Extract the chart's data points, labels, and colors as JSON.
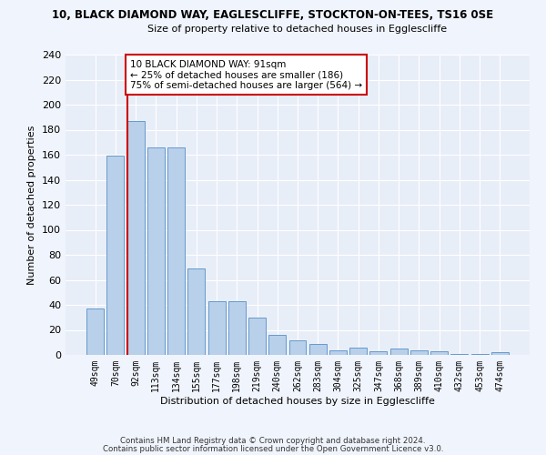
{
  "title1": "10, BLACK DIAMOND WAY, EAGLESCLIFFE, STOCKTON-ON-TEES, TS16 0SE",
  "title2": "Size of property relative to detached houses in Egglescliffe",
  "xlabel": "Distribution of detached houses by size in Egglescliffe",
  "ylabel": "Number of detached properties",
  "bar_color": "#b8d0ea",
  "bar_edge_color": "#6699cc",
  "bg_color": "#e8eef8",
  "grid_color": "#ffffff",
  "categories": [
    "49sqm",
    "70sqm",
    "92sqm",
    "113sqm",
    "134sqm",
    "155sqm",
    "177sqm",
    "198sqm",
    "219sqm",
    "240sqm",
    "262sqm",
    "283sqm",
    "304sqm",
    "325sqm",
    "347sqm",
    "368sqm",
    "389sqm",
    "410sqm",
    "432sqm",
    "453sqm",
    "474sqm"
  ],
  "values": [
    37,
    159,
    187,
    166,
    166,
    69,
    43,
    43,
    30,
    16,
    12,
    9,
    4,
    6,
    3,
    5,
    4,
    3,
    1,
    1,
    2
  ],
  "red_line_index": 2,
  "annotation_text": "10 BLACK DIAMOND WAY: 91sqm\n← 25% of detached houses are smaller (186)\n75% of semi-detached houses are larger (564) →",
  "annotation_box_color": "#ffffff",
  "annotation_border_color": "#cc0000",
  "red_line_color": "#cc0000",
  "footer1": "Contains HM Land Registry data © Crown copyright and database right 2024.",
  "footer2": "Contains public sector information licensed under the Open Government Licence v3.0.",
  "ylim": [
    0,
    240
  ],
  "yticks": [
    0,
    20,
    40,
    60,
    80,
    100,
    120,
    140,
    160,
    180,
    200,
    220,
    240
  ],
  "fig_bg": "#f0f4fc"
}
